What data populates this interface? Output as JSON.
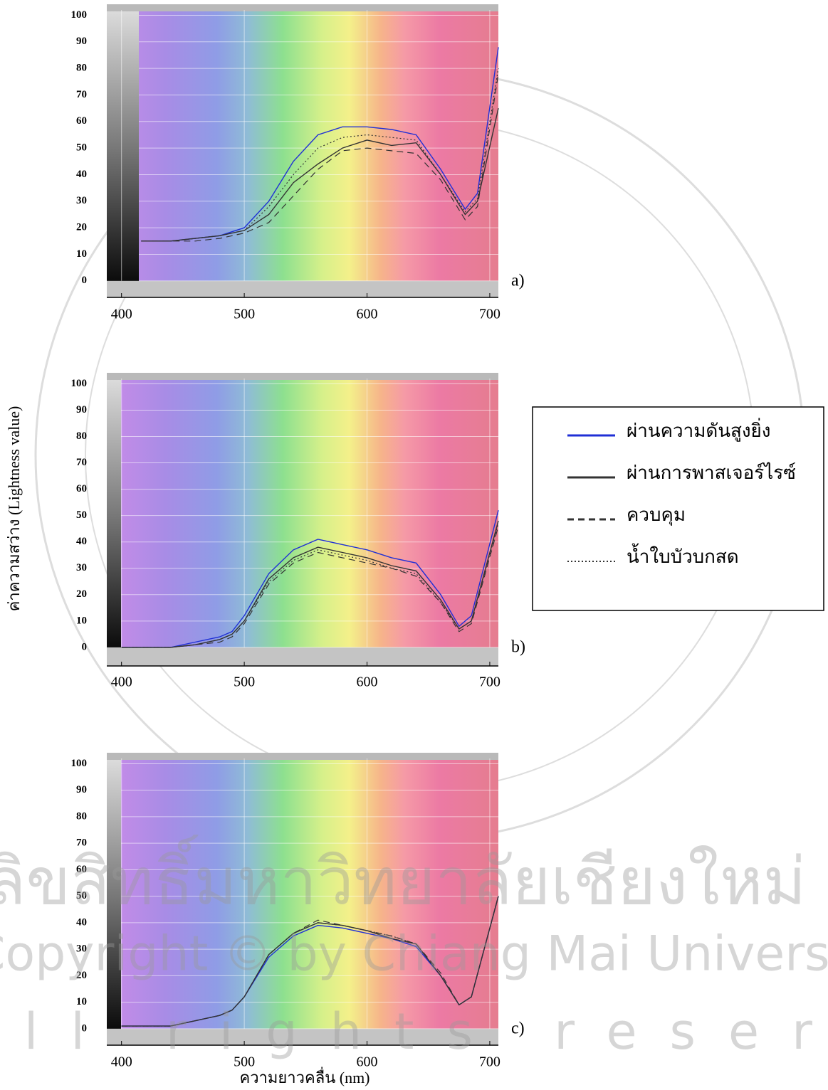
{
  "chart_data": [
    {
      "type": "line",
      "panel_label": "a)",
      "xlim": [
        388,
        707
      ],
      "ylim": [
        -3,
        102
      ],
      "xticks": [
        400,
        500,
        600,
        700
      ],
      "yticks": [
        0,
        10,
        20,
        30,
        40,
        50,
        60,
        70,
        80,
        90,
        100
      ],
      "x": [
        416,
        440,
        460,
        480,
        500,
        520,
        540,
        560,
        580,
        600,
        620,
        640,
        660,
        680,
        690,
        707
      ],
      "series": [
        {
          "color": "#1f2fd6",
          "dash": "solid",
          "values": [
            15,
            15,
            16,
            17,
            20,
            30,
            45,
            55,
            58,
            58,
            57,
            55,
            42,
            27,
            33,
            88
          ]
        },
        {
          "color": "#333333",
          "dash": "solid",
          "values": [
            15,
            15,
            16,
            17,
            19,
            25,
            37,
            44,
            50,
            53,
            51,
            52,
            40,
            25,
            30,
            65
          ]
        },
        {
          "color": "#333333",
          "dash": "dashed",
          "values": [
            15,
            15,
            15,
            16,
            18,
            22,
            32,
            42,
            49,
            50,
            49,
            48,
            38,
            23,
            28,
            78
          ]
        },
        {
          "color": "#333333",
          "dash": "dotted",
          "values": [
            15,
            15,
            16,
            17,
            19,
            28,
            40,
            50,
            54,
            55,
            54,
            53,
            40,
            26,
            31,
            80
          ]
        }
      ]
    },
    {
      "type": "line",
      "panel_label": "b)",
      "ylabel": "ค่าความสว่าง (Lightness value)",
      "xlim": [
        388,
        707
      ],
      "ylim": [
        -3,
        102
      ],
      "xticks": [
        400,
        500,
        600,
        700
      ],
      "yticks": [
        0,
        10,
        20,
        30,
        40,
        50,
        60,
        70,
        80,
        90,
        100
      ],
      "x": [
        400,
        420,
        440,
        460,
        480,
        490,
        500,
        520,
        540,
        560,
        580,
        600,
        620,
        640,
        660,
        675,
        685,
        707
      ],
      "series": [
        {
          "name": "ผ่านความดันสูงยิ่ง",
          "color": "#1f2fd6",
          "dash": "solid",
          "values": [
            0,
            0,
            0,
            2,
            4,
            6,
            12,
            28,
            37,
            41,
            39,
            37,
            34,
            32,
            20,
            8,
            12,
            52
          ]
        },
        {
          "name": "ผ่านการพาสเจอร์ไรซ์",
          "color": "#333333",
          "dash": "solid",
          "values": [
            0,
            0,
            0,
            1,
            3,
            5,
            10,
            26,
            34,
            38,
            36,
            34,
            31,
            29,
            18,
            7,
            10,
            48
          ]
        },
        {
          "name": "ควบคุม",
          "color": "#333333",
          "dash": "dashed",
          "values": [
            0,
            0,
            0,
            1,
            2,
            4,
            9,
            24,
            32,
            36,
            34,
            32,
            30,
            27,
            17,
            6,
            9,
            46
          ]
        },
        {
          "name": "น้ำใบบัวบกสด",
          "color": "#333333",
          "dash": "dotted",
          "values": [
            0,
            0,
            0,
            1,
            3,
            5,
            10,
            25,
            33,
            37,
            35,
            33,
            30,
            28,
            17,
            7,
            10,
            47
          ]
        }
      ]
    },
    {
      "type": "line",
      "panel_label": "c)",
      "xlabel": "ความยาวคลื่น (nm)",
      "xlim": [
        388,
        707
      ],
      "ylim": [
        -3,
        102
      ],
      "xticks": [
        400,
        500,
        600,
        700
      ],
      "yticks": [
        0,
        10,
        20,
        30,
        40,
        50,
        60,
        70,
        80,
        90,
        100
      ],
      "x": [
        400,
        420,
        440,
        460,
        480,
        490,
        500,
        520,
        540,
        560,
        580,
        600,
        620,
        640,
        660,
        675,
        685,
        707
      ],
      "series": [
        {
          "color": "#1f2fd6",
          "dash": "solid",
          "values": [
            1,
            1,
            1,
            3,
            5,
            7,
            12,
            27,
            35,
            39,
            38,
            36,
            34,
            31,
            20,
            9,
            12,
            50
          ]
        },
        {
          "color": "#333333",
          "dash": "solid",
          "values": [
            1,
            1,
            1,
            3,
            5,
            7,
            12,
            28,
            36,
            40,
            39,
            37,
            34,
            32,
            20,
            9,
            12,
            50
          ]
        },
        {
          "color": "#333333",
          "dash": "dashed",
          "values": [
            1,
            1,
            1,
            3,
            5,
            7,
            12,
            28,
            36,
            41,
            39,
            37,
            35,
            32,
            21,
            9,
            12,
            50
          ]
        },
        {
          "color": "#333333",
          "dash": "dotted",
          "values": [
            1,
            1,
            1,
            3,
            5,
            7,
            12,
            28,
            36,
            40,
            39,
            37,
            35,
            32,
            20,
            9,
            12,
            50
          ]
        }
      ]
    }
  ],
  "watermark": {
    "line1": "ลิขสิทธิ์มหาวิทยาลัยเชียงใหม่",
    "line2": "Copyright © by Chiang Mai University",
    "line3": "All rights reserved"
  }
}
